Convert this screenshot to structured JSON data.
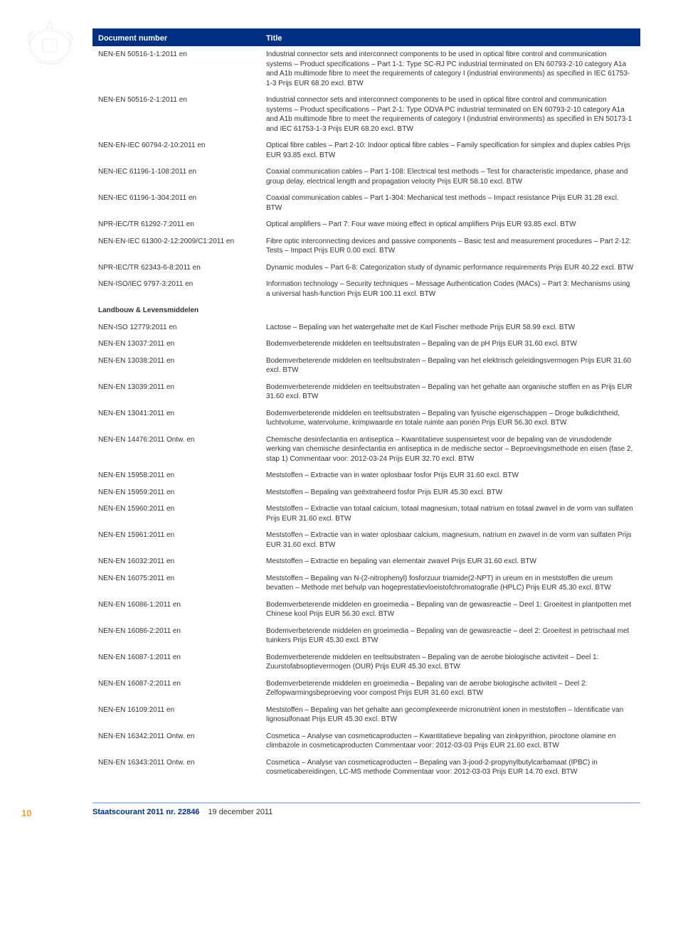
{
  "header": {
    "col1": "Document number",
    "col2": "Title"
  },
  "section_label": "Landbouw & Levensmiddelen",
  "rows1": [
    {
      "doc": "NEN-EN 50516-1-1:2011 en",
      "title": "Industrial connector sets and interconnect components to be used in optical fibre control and communication systems – Product specifications – Part 1-1: Type SC-RJ PC industrial terminated on EN 60793-2-10 category A1a and A1b multimode fibre to meet the requirements of category I (industrial environments) as specified in IEC 61753-1-3 Prijs EUR 68.20 excl. BTW"
    },
    {
      "doc": "NEN-EN 50516-2-1:2011 en",
      "title": "Industrial connector sets and interconnect components to be used in optical fibre control and communication systems – Product specifications – Part 2-1: Type ODVA PC industrial terminated on EN 60793-2-10 category A1a and A1b multimode fibre to meet the requirements of category I (industrial environments) as specified in EN 50173-1 and IEC 61753-1-3 Prijs EUR 68.20 excl. BTW"
    },
    {
      "doc": "NEN-EN-IEC 60794-2-10:2011 en",
      "title": "Optical fibre cables – Part 2-10: Indoor optical fibre cables – Family specification for simplex and duplex cables Prijs EUR 93.85 excl. BTW"
    },
    {
      "doc": "NEN-IEC 61196-1-108:2011 en",
      "title": "Coaxial communication cables – Part 1-108: Electrical test methods – Test for characteristic impedance, phase and group delay, electrical length and propagation velocity Prijs EUR 58.10 excl. BTW"
    },
    {
      "doc": "NEN-IEC 61196-1-304:2011 en",
      "title": "Coaxial communication cables – Part 1-304: Mechanical test methods – Impact resistance Prijs EUR 31.28 excl. BTW"
    },
    {
      "doc": "NPR-IEC/TR 61292-7:2011 en",
      "title": "Optical amplifiers – Part 7: Four wave mixing effect in optical amplifiers Prijs EUR 93.85 excl. BTW"
    },
    {
      "doc": "NEN-EN-IEC 61300-2-12:2009/C1:2011 en",
      "title": "Fibre optic interconnecting devices and passive components – Basic test and measurement procedures – Part 2-12: Tests – Impact Prijs EUR 0.00 excl. BTW"
    },
    {
      "doc": "NPR-IEC/TR 62343-6-8:2011 en",
      "title": "Dynamic modules – Part 6-8: Categorization study of dynamic performance requirements Prijs EUR 40.22 excl. BTW"
    },
    {
      "doc": "NEN-ISO/IEC 9797-3:2011 en",
      "title": "Information technology – Security techniques – Message Authentication Codes (MACs) – Part 3: Mechanisms using a universal hash-function Prijs EUR 100.11 excl. BTW"
    }
  ],
  "rows2": [
    {
      "doc": "NEN-ISO 12779:2011 en",
      "title": "Lactose – Bepaling van het watergehalte met de Karl Fischer methode Prijs EUR 58.99 excl. BTW"
    },
    {
      "doc": "NEN-EN 13037:2011 en",
      "title": "Bodemverbeterende middelen en teeltsubstraten – Bepaling van de pH Prijs EUR 31.60 excl. BTW"
    },
    {
      "doc": "NEN-EN 13038:2011 en",
      "title": "Bodemverbeterende middelen en teeltsubstraten – Bepaling van het elektrisch geleidingsvermogen Prijs EUR 31.60 excl. BTW"
    },
    {
      "doc": "NEN-EN 13039:2011 en",
      "title": "Bodemverbeterende middelen en teeltsubstraten – Bepaling van het gehalte aan organische stoffen en as Prijs EUR 31.60 excl. BTW"
    },
    {
      "doc": "NEN-EN 13041:2011 en",
      "title": "Bodemverbeterende middelen en teeltsubstraten – Bepaling van fysische eigenschappen – Droge bulkdichtheid, luchtvolume, watervolume, krimpwaarde en totale ruimte aan poriën Prijs EUR 56.30 excl. BTW"
    },
    {
      "doc": "NEN-EN 14476:2011 Ontw. en",
      "title": "Chemische desinfectantia en antiseptica – Kwantitatieve suspensietest voor de bepaling van de virusdodende werking van chemische desinfectantia en antiseptica in de medische sector – Beproevingsmethode en eisen (fase 2, stap 1) Commentaar voor: 2012-03-24 Prijs EUR 32.70 excl. BTW"
    },
    {
      "doc": "NEN-EN 15958:2011 en",
      "title": "Meststoffen – Extractie van in water oplosbaar fosfor Prijs EUR 31.60 excl. BTW"
    },
    {
      "doc": "NEN-EN 15959:2011 en",
      "title": "Meststoffen – Bepaling van geëxtraheerd fosfor Prijs EUR 45.30 excl. BTW"
    },
    {
      "doc": "NEN-EN 15960:2011 en",
      "title": "Meststoffen – Extractie van totaal calcium, totaal magnesium, totaal natrium en totaal zwavel in de vorm van sulfaten Prijs EUR 31.60 excl. BTW"
    },
    {
      "doc": "NEN-EN 15961:2011 en",
      "title": "Meststoffen – Extractie van in water oplosbaar calcium, magnesium, natrium en zwavel in de vorm van sulfaten Prijs EUR 31.60 excl. BTW"
    },
    {
      "doc": "NEN-EN 16032:2011 en",
      "title": "Meststoffen – Extractie en bepaling van elementair zwavel Prijs EUR 31.60 excl. BTW"
    },
    {
      "doc": "NEN-EN 16075:2011 en",
      "title": "Meststoffen – Bepaling van N-(2-nitrophenyl) fosforzuur triamide(2-NPT) in ureum en in meststoffen die ureum bevatten – Methode met behulp van hogeprestatievloeistofchromatografie (HPLC) Prijs EUR 45.30 excl. BTW"
    },
    {
      "doc": "NEN-EN 16086-1:2011 en",
      "title": "Bodemverbeterende middelen en groeimedia – Bepaling van de gewasreactie – Deel 1: Groeitest in plantpotten met Chinese kool Prijs EUR 56.30 excl. BTW"
    },
    {
      "doc": "NEN-EN 16086-2:2011 en",
      "title": "Bodemverbeterende middelen en groeimedia – Bepaling van de gewasreactie – deel 2: Groeitest in petrischaal met tuinkers Prijs EUR 45.30 excl. BTW"
    },
    {
      "doc": "NEN-EN 16087-1:2011 en",
      "title": "Bodemverbeterende middelen en teeltsubstraten – Bepaling van de aerobe biologische activiteit – Deel 1: Zuurstofabsoptievermogen (OUR) Prijs EUR 45.30 excl. BTW"
    },
    {
      "doc": "NEN-EN 16087-2:2011 en",
      "title": "Bodemverbeterende middelen en groeimedia – Bepaling van de aerobe biologische activiteit – Deel 2: Zelfopwarmingsbeproeving voor compost Prijs EUR 31.60 excl. BTW"
    },
    {
      "doc": "NEN-EN 16109:2011 en",
      "title": "Meststoffen – Bepaling van het gehalte aan gecomplexeerde micronutriënt ionen in meststoffen – Identificatie van lignosulfonaat Prijs EUR 45.30 excl. BTW"
    },
    {
      "doc": "NEN-EN 16342:2011 Ontw. en",
      "title": "Cosmetica – Analyse van cosmeticaproducten – Kwantitatieve bepaling van zinkpyrithion, piroctone olamine en climbazole in cosmeticaproducten Commentaar voor: 2012-03-03 Prijs EUR 21.60 excl. BTW"
    },
    {
      "doc": "NEN-EN 16343:2011 Ontw. en",
      "title": "Cosmetica – Analyse van cosmeticaproducten – Bepaling van 3-jood-2-propynylbutylcarbamaat (IPBC) in cosmeticabereidingen, LC-MS methode Commentaar voor: 2012-03-03 Prijs EUR 14.70 excl. BTW"
    }
  ],
  "footer": {
    "page_num": "10",
    "publication": "Staatscourant 2011 nr. 22846",
    "date": "19 december 2011"
  },
  "colors": {
    "header_bg": "#003082",
    "header_text": "#ffffff",
    "footer_rule": "#aac4e6",
    "page_num": "#f0a030"
  }
}
